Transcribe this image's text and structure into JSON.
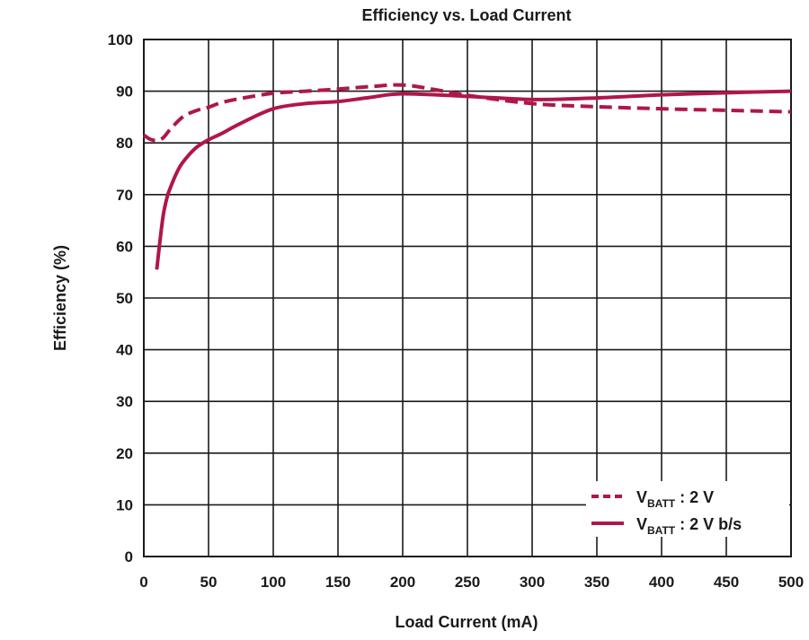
{
  "chart_data": {
    "type": "line",
    "title": "Efficiency vs. Load Current",
    "xlabel": "Load Current (mA)",
    "ylabel": "Efficiency (%)",
    "xlim": [
      0,
      500
    ],
    "ylim": [
      0,
      100
    ],
    "x_ticks": [
      "0",
      "50",
      "100",
      "150",
      "200",
      "250",
      "300",
      "350",
      "400",
      "450",
      "500"
    ],
    "y_ticks": [
      "0",
      "10",
      "20",
      "30",
      "40",
      "50",
      "60",
      "70",
      "80",
      "90",
      "100"
    ],
    "grid": true,
    "legend_position": "bottom-right",
    "series": [
      {
        "name_main": "V",
        "name_sub": "BATT",
        "name_rest": " : 2 V",
        "style": "dashed",
        "color": "#b0164a",
        "x": [
          0,
          5,
          10,
          15,
          20,
          30,
          40,
          50,
          60,
          75,
          100,
          125,
          150,
          175,
          200,
          225,
          250,
          300,
          350,
          400,
          450,
          500
        ],
        "y": [
          81.5,
          80.7,
          80.5,
          81.0,
          82.5,
          85.0,
          86.2,
          86.9,
          87.8,
          88.6,
          89.6,
          90.0,
          90.4,
          90.9,
          91.2,
          90.3,
          89.2,
          87.6,
          87.0,
          86.6,
          86.3,
          86.0
        ]
      },
      {
        "name_main": "V",
        "name_sub": "BATT",
        "name_rest": " : 2 V b/s",
        "style": "solid",
        "color": "#b0164a",
        "x": [
          10,
          12,
          15,
          18,
          20,
          25,
          30,
          40,
          50,
          60,
          75,
          100,
          125,
          150,
          175,
          200,
          250,
          300,
          350,
          400,
          450,
          500
        ],
        "y": [
          55.5,
          60.0,
          66.0,
          69.5,
          71.0,
          74.0,
          76.2,
          79.0,
          80.6,
          81.8,
          83.8,
          86.6,
          87.6,
          88.0,
          88.8,
          89.5,
          89.0,
          88.4,
          88.7,
          89.3,
          89.7,
          90.0
        ]
      }
    ]
  }
}
